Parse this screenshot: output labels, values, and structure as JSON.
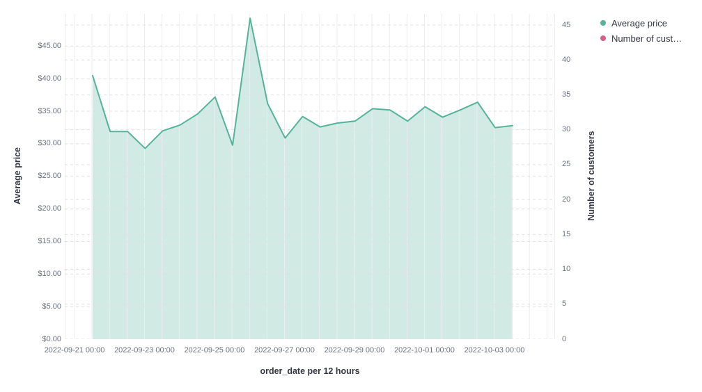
{
  "chart_data": {
    "type": "area",
    "title": "",
    "xlabel": "order_date per 12 hours",
    "legend_position": "top-right",
    "grid": true,
    "x_axis": {
      "title": "order_date per 12 hours",
      "interval": "12 hours",
      "tick_labels": [
        "2022-09-21 00:00",
        "2022-09-23 00:00",
        "2022-09-25 00:00",
        "2022-09-27 00:00",
        "2022-09-29 00:00",
        "2022-10-01 00:00",
        "2022-10-03 00:00"
      ]
    },
    "left_axis": {
      "title": "Average price",
      "tick_labels": [
        "$0.00",
        "$5.00",
        "$10.00",
        "$15.00",
        "$20.00",
        "$25.00",
        "$30.00",
        "$35.00",
        "$40.00",
        "$45.00"
      ],
      "range": [
        0,
        49.9
      ]
    },
    "right_axis": {
      "title": "Number of customers",
      "tick_labels": [
        "0",
        "5",
        "10",
        "15",
        "20",
        "25",
        "30",
        "35",
        "40",
        "45"
      ],
      "range": [
        0,
        46.6
      ]
    },
    "x": [
      "2022-09-21 12:00",
      "2022-09-22 00:00",
      "2022-09-22 12:00",
      "2022-09-23 00:00",
      "2022-09-23 12:00",
      "2022-09-24 00:00",
      "2022-09-24 12:00",
      "2022-09-25 00:00",
      "2022-09-25 12:00",
      "2022-09-26 00:00",
      "2022-09-26 12:00",
      "2022-09-27 00:00",
      "2022-09-27 12:00",
      "2022-09-28 00:00",
      "2022-09-28 12:00",
      "2022-09-29 00:00",
      "2022-09-29 12:00",
      "2022-09-30 00:00",
      "2022-09-30 12:00",
      "2022-10-01 00:00",
      "2022-10-01 12:00",
      "2022-10-02 00:00",
      "2022-10-02 12:00",
      "2022-10-03 00:00",
      "2022-10-03 12:00"
    ],
    "series": [
      {
        "name": "Average price",
        "axis": "left",
        "color": "#54B399",
        "fill_opacity": 0.27,
        "values": [
          40.5,
          31.9,
          31.9,
          29.3,
          32.0,
          32.9,
          34.6,
          37.2,
          29.8,
          49.3,
          36.2,
          30.9,
          34.2,
          32.6,
          33.2,
          33.5,
          35.4,
          35.2,
          33.5,
          35.7,
          34.1,
          35.2,
          36.4,
          32.5,
          32.8
        ]
      },
      {
        "name": "Number of customers",
        "axis": "right",
        "color": "#D36086",
        "values": []
      }
    ]
  },
  "legend": {
    "items": [
      {
        "label": "Average price",
        "color": "#54B399"
      },
      {
        "label": "Number of cust…",
        "color": "#D36086"
      }
    ]
  }
}
